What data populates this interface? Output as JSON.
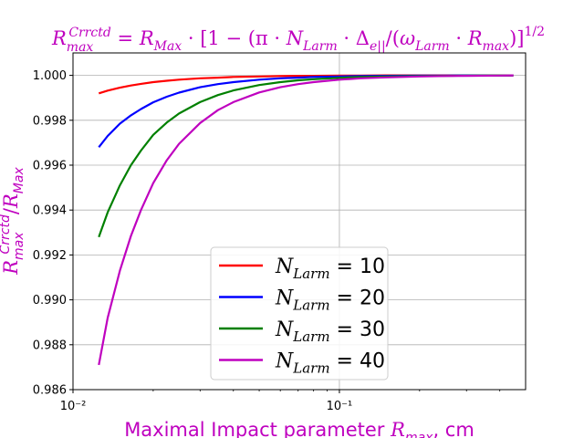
{
  "chart_data": {
    "type": "line",
    "title": "R_max^Crrctd = R_Max · [1 − (π · N_Larm · Δ_e|| / (ω_Larm · R_max)]^1/2",
    "xlabel": "Maximal Impact parameter R_max, cm",
    "ylabel": "R_max^Crrctd / R_Max",
    "x_scale": "log",
    "xlim": [
      0.01,
      0.5
    ],
    "ylim": [
      0.986,
      1.001
    ],
    "x_ticks": [
      0.01,
      0.1
    ],
    "x_tick_labels": [
      "10⁻²",
      "10⁻¹"
    ],
    "y_ticks": [
      0.986,
      0.988,
      0.99,
      0.992,
      0.994,
      0.996,
      0.998,
      1.0
    ],
    "y_tick_labels": [
      "0.986",
      "0.988",
      "0.990",
      "0.992",
      "0.994",
      "0.996",
      "0.998",
      "1.000"
    ],
    "grid": true,
    "legend_position": "lower-right",
    "x": [
      0.0125,
      0.0135,
      0.015,
      0.0165,
      0.018,
      0.02,
      0.0225,
      0.025,
      0.03,
      0.035,
      0.04,
      0.05,
      0.06,
      0.07,
      0.08,
      0.1,
      0.12,
      0.15,
      0.2,
      0.25,
      0.3,
      0.4,
      0.45
    ],
    "series": [
      {
        "name": "N_Larm = 10",
        "color": "#ff0000",
        "values": [
          0.9992,
          0.99932,
          0.99945,
          0.99955,
          0.99962,
          0.9997,
          0.99976,
          0.99981,
          0.99987,
          0.9999,
          0.99993,
          0.99995,
          0.99997,
          0.99998,
          0.99998,
          0.99999,
          0.99999,
          1.0,
          1.0,
          1.0,
          1.0,
          1.0,
          1.0
        ]
      },
      {
        "name": "N_Larm = 20",
        "color": "#0000ff",
        "values": [
          0.9968,
          0.9973,
          0.99785,
          0.99822,
          0.9985,
          0.9988,
          0.99905,
          0.99923,
          0.99947,
          0.99961,
          0.9997,
          0.99981,
          0.99987,
          0.9999,
          0.99993,
          0.99995,
          0.99997,
          0.99998,
          0.99999,
          0.99999,
          1.0,
          1.0,
          1.0
        ]
      },
      {
        "name": "N_Larm = 30",
        "color": "#008000",
        "values": [
          0.9928,
          0.9939,
          0.9951,
          0.996,
          0.99665,
          0.99735,
          0.9979,
          0.9983,
          0.99881,
          0.99912,
          0.99933,
          0.99957,
          0.9997,
          0.99978,
          0.99983,
          0.99989,
          0.99993,
          0.99995,
          0.99997,
          0.99998,
          0.99999,
          1.0,
          1.0
        ]
      },
      {
        "name": "N_Larm = 40",
        "color": "#bf00bf",
        "values": [
          0.9871,
          0.9892,
          0.9913,
          0.99285,
          0.994,
          0.9952,
          0.99622,
          0.99695,
          0.99788,
          0.99845,
          0.99881,
          0.99924,
          0.99947,
          0.99961,
          0.9997,
          0.99981,
          0.99987,
          0.99991,
          0.99995,
          0.99997,
          0.99998,
          0.99999,
          1.0
        ]
      }
    ]
  }
}
